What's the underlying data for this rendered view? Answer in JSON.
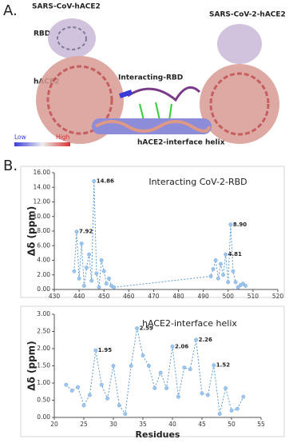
{
  "figure": {
    "panel_a": "A.",
    "left_title": "SARS-CoV-hACE2",
    "rbd": "RBD",
    "hace2": "hACE2",
    "interacting": "Interacting-RBD",
    "helix": "hACE2-interface helix",
    "right_title": "SARS-CoV-2-hACE2",
    "low": "Low",
    "high": "High",
    "panel_b": "B."
  },
  "chart_data": [
    {
      "type": "line",
      "title": "Interacting CoV-2-RBD",
      "y_label": "Δδ (ppm)",
      "x": [
        438,
        439,
        440,
        441,
        442,
        443,
        444,
        445,
        446,
        447,
        448,
        449,
        450,
        451,
        452,
        453,
        454,
        493,
        494,
        495,
        496,
        497,
        498,
        499,
        500,
        501,
        502,
        503,
        504,
        505,
        506,
        507
      ],
      "series": [
        {
          "color": "#5b9bd5",
          "values": [
            2.5,
            7.92,
            1.5,
            6.3,
            0.5,
            3.0,
            4.8,
            1.2,
            14.86,
            2.2,
            0.3,
            4.0,
            2.5,
            0.8,
            1.5,
            0.5,
            0.3,
            1.8,
            2.8,
            4.0,
            1.5,
            3.5,
            2.0,
            4.81,
            1.0,
            8.9,
            2.5,
            1.0,
            0.3,
            0.6,
            0.8,
            0.5
          ],
          "value_labels": [
            null,
            "7.92",
            null,
            null,
            null,
            null,
            null,
            null,
            "14.86",
            null,
            null,
            null,
            null,
            null,
            null,
            null,
            null,
            null,
            null,
            null,
            null,
            null,
            null,
            "4.81",
            null,
            "8.90",
            null,
            null,
            null,
            null,
            null,
            null
          ]
        }
      ],
      "xlim": [
        430,
        520
      ],
      "xticks": [
        430,
        440,
        450,
        460,
        470,
        480,
        490,
        500,
        510,
        520
      ],
      "ylim": [
        0,
        16
      ],
      "yticks": [
        {
          "value": 0,
          "label": "0.00"
        },
        {
          "value": 2,
          "label": "2.00"
        },
        {
          "value": 4,
          "label": "4.00"
        },
        {
          "value": 6,
          "label": "6.00"
        },
        {
          "value": 8,
          "label": "8.00"
        },
        {
          "value": 10,
          "label": "10.00"
        },
        {
          "value": 12,
          "label": "12.00"
        },
        {
          "value": 14,
          "label": "14.00"
        },
        {
          "value": 16,
          "label": "16.00"
        }
      ]
    },
    {
      "type": "line",
      "title": "hACE2-interface helix",
      "y_label": "Δδ (ppm)",
      "x_label": "Residues",
      "x": [
        22,
        23,
        24,
        25,
        26,
        27,
        28,
        29,
        30,
        31,
        32,
        33,
        34,
        35,
        36,
        37,
        38,
        39,
        40,
        41,
        42,
        43,
        44,
        45,
        46,
        47,
        48,
        49,
        50,
        51,
        52
      ],
      "series": [
        {
          "color": "#5b9bd5",
          "values": [
            0.95,
            0.78,
            0.88,
            0.35,
            0.65,
            1.95,
            0.95,
            0.55,
            1.5,
            0.35,
            0.1,
            1.5,
            2.59,
            1.8,
            1.5,
            0.85,
            1.3,
            0.85,
            2.06,
            0.6,
            1.45,
            1.4,
            2.26,
            0.7,
            0.65,
            1.52,
            0.1,
            0.85,
            0.2,
            0.25,
            0.6
          ],
          "value_labels": [
            null,
            null,
            null,
            null,
            null,
            "1.95",
            null,
            null,
            null,
            null,
            null,
            null,
            "2.59",
            null,
            null,
            null,
            null,
            null,
            "2.06",
            null,
            null,
            null,
            "2.26",
            null,
            null,
            "1.52",
            null,
            null,
            null,
            null,
            null
          ]
        }
      ],
      "xlim": [
        20,
        55
      ],
      "xticks": [
        20,
        25,
        30,
        35,
        40,
        45,
        50,
        55
      ],
      "ylim": [
        0,
        3
      ],
      "yticks": [
        {
          "value": 0,
          "label": "0.00"
        },
        {
          "value": 0.5,
          "label": "0.50"
        },
        {
          "value": 1,
          "label": "1.00"
        },
        {
          "value": 1.5,
          "label": "1.50"
        },
        {
          "value": 2,
          "label": "2.00"
        },
        {
          "value": 2.5,
          "label": "2.50"
        },
        {
          "value": 3,
          "label": "3.00"
        }
      ]
    }
  ]
}
